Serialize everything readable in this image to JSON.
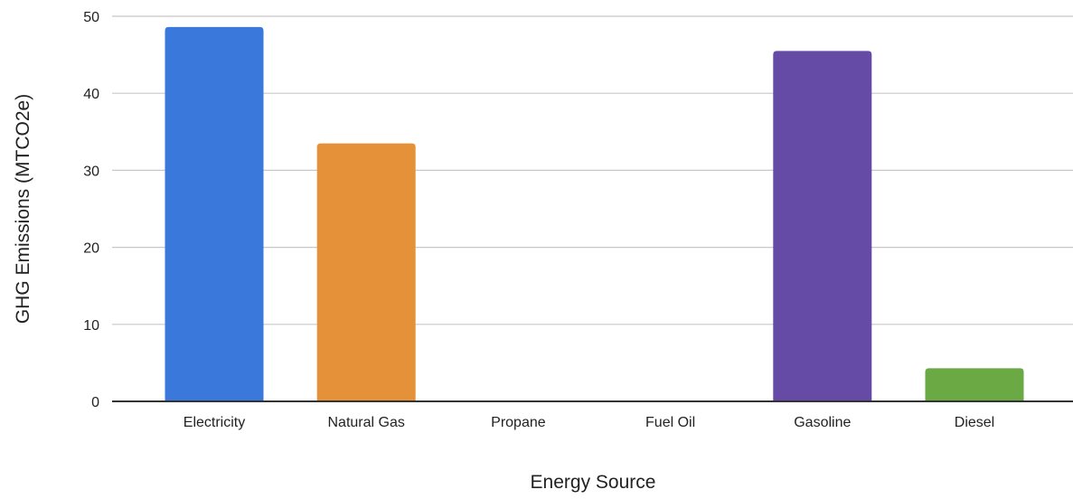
{
  "chart_data": {
    "type": "bar",
    "title": "",
    "xlabel": "Energy Source",
    "ylabel": "GHG Emissions (MTCO2e)",
    "categories": [
      "Electricity",
      "Natural Gas",
      "Propane",
      "Fuel Oil",
      "Gasoline",
      "Diesel"
    ],
    "values": [
      48.6,
      33.5,
      0,
      0,
      45.5,
      4.3
    ],
    "colors": [
      "#3b78dc",
      "#e5913a",
      "#9e9e9e",
      "#9e9e9e",
      "#654ba6",
      "#6aa944"
    ],
    "ylim": [
      0,
      50
    ],
    "yticks": [
      0,
      10,
      20,
      30,
      40,
      50
    ],
    "grid": true,
    "legend": "none"
  }
}
